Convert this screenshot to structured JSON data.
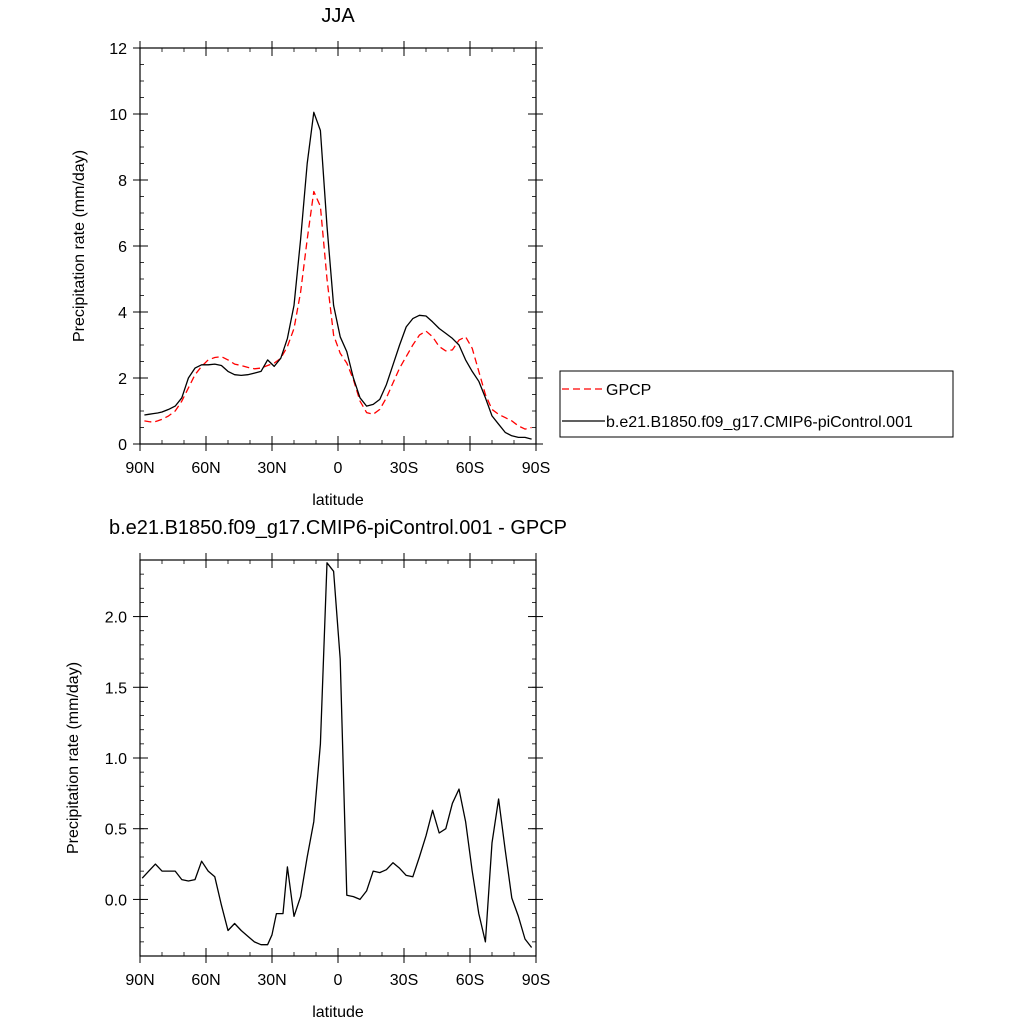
{
  "chart_data": [
    {
      "type": "line",
      "title": "JJA",
      "xlabel": "latitude",
      "ylabel": "Precipitation rate (mm/day)",
      "xlim": [
        90,
        -90
      ],
      "ylim": [
        0,
        12
      ],
      "y_ticks": [
        0,
        2,
        4,
        6,
        8,
        10,
        12
      ],
      "y_tick_labels": [
        "0",
        "2",
        "4",
        "6",
        "8",
        "10",
        "12"
      ],
      "x_ticks": [
        90,
        60,
        30,
        0,
        -30,
        -60,
        -90
      ],
      "x_tick_labels": [
        "90N",
        "60N",
        "30N",
        "0",
        "30S",
        "60S",
        "90S"
      ],
      "legend_position": "right",
      "series": [
        {
          "name": "GPCP",
          "color": "#ff0000",
          "dash": "dashed",
          "x": [
            88,
            86,
            84,
            82,
            80,
            77,
            74,
            71,
            68,
            65,
            62,
            59,
            56,
            53,
            50,
            47,
            44,
            41,
            38,
            35,
            32,
            29,
            26,
            23,
            20,
            17,
            14,
            11,
            8,
            5,
            2,
            -1,
            -4,
            -7,
            -10,
            -13,
            -16,
            -19,
            -22,
            -25,
            -28,
            -31,
            -34,
            -37,
            -40,
            -43,
            -46,
            -49,
            -52,
            -55,
            -58,
            -61,
            -64,
            -67,
            -70,
            -73,
            -76,
            -79,
            -82,
            -85,
            -88
          ],
          "y": [
            0.7,
            0.68,
            0.66,
            0.7,
            0.75,
            0.85,
            1.0,
            1.3,
            1.7,
            2.1,
            2.35,
            2.55,
            2.62,
            2.65,
            2.55,
            2.42,
            2.38,
            2.32,
            2.28,
            2.3,
            2.38,
            2.45,
            2.6,
            2.95,
            3.5,
            4.6,
            6.2,
            7.65,
            7.2,
            5.0,
            3.3,
            2.75,
            2.45,
            1.95,
            1.3,
            0.95,
            0.9,
            1.05,
            1.4,
            1.85,
            2.3,
            2.65,
            3.0,
            3.3,
            3.42,
            3.25,
            2.95,
            2.82,
            2.85,
            3.15,
            3.25,
            2.9,
            2.2,
            1.5,
            1.05,
            0.9,
            0.8,
            0.7,
            0.55,
            0.45,
            0.5
          ]
        },
        {
          "name": "b.e21.B1850.f09_g17.CMIP6-piControl.001",
          "color": "#000000",
          "dash": "solid",
          "x": [
            88,
            86,
            84,
            82,
            80,
            77,
            74,
            71,
            68,
            65,
            62,
            59,
            56,
            53,
            50,
            47,
            44,
            41,
            38,
            35,
            32,
            29,
            26,
            23,
            20,
            17,
            14,
            11,
            8,
            5,
            2,
            -1,
            -4,
            -7,
            -10,
            -13,
            -16,
            -19,
            -22,
            -25,
            -28,
            -31,
            -34,
            -37,
            -40,
            -43,
            -46,
            -49,
            -52,
            -55,
            -58,
            -61,
            -64,
            -67,
            -70,
            -73,
            -76,
            -79,
            -82,
            -85,
            -88
          ],
          "y": [
            0.88,
            0.9,
            0.92,
            0.94,
            0.97,
            1.05,
            1.15,
            1.4,
            2.0,
            2.3,
            2.4,
            2.4,
            2.42,
            2.38,
            2.2,
            2.1,
            2.08,
            2.1,
            2.15,
            2.2,
            2.55,
            2.35,
            2.6,
            3.2,
            4.2,
            6.2,
            8.5,
            10.05,
            9.5,
            6.6,
            4.2,
            3.25,
            2.8,
            2.0,
            1.4,
            1.15,
            1.2,
            1.35,
            1.8,
            2.4,
            3.0,
            3.55,
            3.8,
            3.9,
            3.88,
            3.7,
            3.5,
            3.35,
            3.2,
            3.0,
            2.55,
            2.2,
            1.9,
            1.4,
            0.85,
            0.6,
            0.35,
            0.25,
            0.2,
            0.2,
            0.15
          ]
        }
      ]
    },
    {
      "type": "line",
      "title": "b.e21.B1850.f09_g17.CMIP6-piControl.001 - GPCP",
      "xlabel": "latitude",
      "ylabel": "Precipitation rate (mm/day)",
      "xlim": [
        90,
        -90
      ],
      "ylim": [
        -0.4,
        2.4
      ],
      "y_ticks": [
        0.0,
        0.5,
        1.0,
        1.5,
        2.0
      ],
      "y_tick_labels": [
        "0.0",
        "0.5",
        "1.0",
        "1.5",
        "2.0"
      ],
      "x_ticks": [
        90,
        60,
        30,
        0,
        -30,
        -60,
        -90
      ],
      "x_tick_labels": [
        "90N",
        "60N",
        "30N",
        "0",
        "30S",
        "60S",
        "90S"
      ],
      "series": [
        {
          "color": "#000000",
          "dash": "solid",
          "x": [
            89,
            86,
            83,
            80,
            77,
            74,
            71,
            68,
            65,
            62,
            59,
            56,
            53,
            50,
            47,
            44,
            41,
            38,
            35,
            32,
            30,
            28,
            25,
            23,
            20,
            17,
            14,
            11,
            8,
            5,
            2,
            -1,
            -4,
            -7,
            -10,
            -13,
            -16,
            -19,
            -22,
            -25,
            -28,
            -31,
            -34,
            -37,
            -40,
            -43,
            -46,
            -49,
            -52,
            -55,
            -58,
            -61,
            -64,
            -67,
            -70,
            -73,
            -76,
            -79,
            -82,
            -85,
            -88
          ],
          "y": [
            0.15,
            0.2,
            0.25,
            0.2,
            0.2,
            0.2,
            0.14,
            0.13,
            0.14,
            0.27,
            0.2,
            0.16,
            -0.04,
            -0.22,
            -0.17,
            -0.22,
            -0.26,
            -0.3,
            -0.32,
            -0.32,
            -0.25,
            -0.1,
            -0.1,
            0.23,
            -0.12,
            0.02,
            0.3,
            0.55,
            1.1,
            2.38,
            2.32,
            1.7,
            0.03,
            0.02,
            0.0,
            0.06,
            0.2,
            0.19,
            0.21,
            0.26,
            0.22,
            0.17,
            0.16,
            0.3,
            0.45,
            0.63,
            0.47,
            0.5,
            0.68,
            0.78,
            0.55,
            0.2,
            -0.1,
            -0.3,
            0.4,
            0.71,
            0.35,
            0.01,
            -0.12,
            -0.28,
            -0.34
          ]
        }
      ]
    }
  ]
}
